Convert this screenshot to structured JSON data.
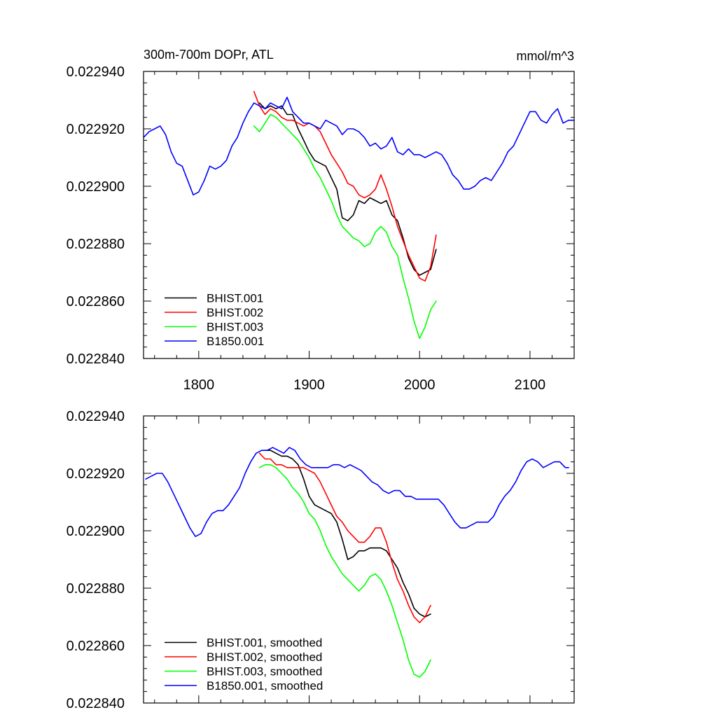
{
  "chart_data": [
    {
      "type": "line",
      "panel": "raw",
      "title": "300m-700m DOPr, ATL",
      "units": "mmol/m^3",
      "xlabel": "",
      "ylabel": "",
      "xlim": [
        1750,
        2140
      ],
      "ylim": [
        0.02284,
        0.02294
      ],
      "x_ticks": [
        1800,
        1900,
        2000,
        2100
      ],
      "x_tick_labels": [
        "1800",
        "1900",
        "2000",
        "2100"
      ],
      "y_ticks": [
        0.02284,
        0.02286,
        0.02288,
        0.0229,
        0.02292,
        0.02294
      ],
      "y_tick_labels": [
        "0.022840",
        "0.022860",
        "0.022880",
        "0.022900",
        "0.022920",
        "0.022940"
      ],
      "legend_position": "bottom-left",
      "series": [
        {
          "name": "BHIST.001",
          "color": "#000000",
          "x": [
            1855,
            1860,
            1865,
            1870,
            1875,
            1880,
            1885,
            1890,
            1895,
            1900,
            1905,
            1910,
            1915,
            1920,
            1925,
            1930,
            1935,
            1940,
            1945,
            1950,
            1955,
            1960,
            1965,
            1970,
            1975,
            1980,
            1985,
            1990,
            1995,
            2000,
            2005,
            2010,
            2015
          ],
          "values": [
            0.022929,
            0.022927,
            0.022928,
            0.022927,
            0.022928,
            0.022925,
            0.022925,
            0.02292,
            0.022916,
            0.022912,
            0.022909,
            0.022908,
            0.022907,
            0.022903,
            0.022899,
            0.022889,
            0.022888,
            0.02289,
            0.022895,
            0.022894,
            0.022896,
            0.022895,
            0.022894,
            0.022895,
            0.02289,
            0.022888,
            0.022882,
            0.022875,
            0.022871,
            0.022869,
            0.02287,
            0.022871,
            0.022878
          ]
        },
        {
          "name": "BHIST.002",
          "color": "#ff0000",
          "x": [
            1850,
            1855,
            1860,
            1865,
            1870,
            1875,
            1880,
            1885,
            1890,
            1895,
            1900,
            1905,
            1910,
            1915,
            1920,
            1925,
            1930,
            1935,
            1940,
            1945,
            1950,
            1955,
            1960,
            1965,
            1970,
            1975,
            1980,
            1985,
            1990,
            1995,
            2000,
            2005,
            2010,
            2015
          ],
          "values": [
            0.022933,
            0.022928,
            0.022925,
            0.022927,
            0.022926,
            0.022924,
            0.022923,
            0.022923,
            0.022922,
            0.022921,
            0.022922,
            0.022921,
            0.022919,
            0.022915,
            0.022911,
            0.022908,
            0.022905,
            0.022901,
            0.0229,
            0.022897,
            0.022896,
            0.022897,
            0.022899,
            0.022904,
            0.022899,
            0.022893,
            0.022886,
            0.022881,
            0.022876,
            0.022872,
            0.022868,
            0.022867,
            0.022872,
            0.022883
          ]
        },
        {
          "name": "BHIST.003",
          "color": "#00ff00",
          "x": [
            1850,
            1855,
            1860,
            1865,
            1870,
            1875,
            1880,
            1885,
            1890,
            1895,
            1900,
            1905,
            1910,
            1915,
            1920,
            1925,
            1930,
            1935,
            1940,
            1945,
            1950,
            1955,
            1960,
            1965,
            1970,
            1975,
            1980,
            1985,
            1990,
            1995,
            2000,
            2005,
            2010,
            2015
          ],
          "values": [
            0.022921,
            0.022919,
            0.022922,
            0.022925,
            0.022924,
            0.022922,
            0.02292,
            0.022918,
            0.022916,
            0.022913,
            0.02291,
            0.022906,
            0.022903,
            0.022899,
            0.022895,
            0.02289,
            0.022886,
            0.022884,
            0.022882,
            0.022881,
            0.022879,
            0.02288,
            0.022884,
            0.022886,
            0.022884,
            0.022879,
            0.022876,
            0.022868,
            0.022861,
            0.022853,
            0.022847,
            0.022851,
            0.022857,
            0.02286
          ]
        },
        {
          "name": "B1850.001",
          "color": "#0000ff",
          "x": [
            1750,
            1755,
            1760,
            1765,
            1770,
            1775,
            1780,
            1785,
            1790,
            1795,
            1800,
            1805,
            1810,
            1815,
            1820,
            1825,
            1830,
            1835,
            1840,
            1845,
            1850,
            1855,
            1860,
            1865,
            1870,
            1875,
            1880,
            1885,
            1890,
            1895,
            1900,
            1905,
            1910,
            1915,
            1920,
            1925,
            1930,
            1935,
            1940,
            1945,
            1950,
            1955,
            1960,
            1965,
            1970,
            1975,
            1980,
            1985,
            1990,
            1995,
            2000,
            2005,
            2010,
            2015,
            2020,
            2025,
            2030,
            2035,
            2040,
            2045,
            2050,
            2055,
            2060,
            2065,
            2070,
            2075,
            2080,
            2085,
            2090,
            2095,
            2100,
            2105,
            2110,
            2115,
            2120,
            2125,
            2130,
            2135,
            2140
          ],
          "values": [
            0.022917,
            0.022919,
            0.02292,
            0.022921,
            0.022918,
            0.022912,
            0.022908,
            0.022907,
            0.022902,
            0.022897,
            0.022898,
            0.022902,
            0.022907,
            0.022906,
            0.022907,
            0.022909,
            0.022914,
            0.022917,
            0.022922,
            0.022926,
            0.022929,
            0.022928,
            0.022927,
            0.022929,
            0.022928,
            0.022927,
            0.022931,
            0.022926,
            0.022924,
            0.022922,
            0.022922,
            0.022921,
            0.02292,
            0.022923,
            0.022922,
            0.022921,
            0.022918,
            0.02292,
            0.02292,
            0.022919,
            0.022917,
            0.022914,
            0.022915,
            0.022913,
            0.022914,
            0.022917,
            0.022912,
            0.022911,
            0.022913,
            0.022911,
            0.022911,
            0.02291,
            0.022911,
            0.022912,
            0.022911,
            0.022908,
            0.022904,
            0.022902,
            0.022899,
            0.022899,
            0.0229,
            0.022902,
            0.022903,
            0.022902,
            0.022905,
            0.022908,
            0.022912,
            0.022914,
            0.022918,
            0.022922,
            0.022926,
            0.022926,
            0.022923,
            0.022922,
            0.022925,
            0.022927,
            0.022922,
            0.022923,
            0.022923
          ]
        }
      ]
    },
    {
      "type": "line",
      "panel": "smoothed",
      "title": "",
      "xlabel": "",
      "ylabel": "",
      "xlim": [
        1750,
        2140
      ],
      "ylim": [
        0.02284,
        0.02294
      ],
      "x_ticks": [
        1800,
        1900,
        2000,
        2100
      ],
      "x_tick_labels": [],
      "y_ticks": [
        0.02284,
        0.02286,
        0.02288,
        0.0229,
        0.02292,
        0.02294
      ],
      "y_tick_labels": [
        "0.022840",
        "0.022860",
        "0.022880",
        "0.022900",
        "0.022920",
        "0.022940"
      ],
      "legend_position": "bottom-left",
      "series": [
        {
          "name": "BHIST.001, smoothed",
          "color": "#000000",
          "x": [
            1860,
            1865,
            1870,
            1875,
            1880,
            1885,
            1890,
            1895,
            1900,
            1905,
            1910,
            1915,
            1920,
            1925,
            1930,
            1935,
            1940,
            1945,
            1950,
            1955,
            1960,
            1965,
            1970,
            1975,
            1980,
            1985,
            1990,
            1995,
            2000,
            2005,
            2010
          ],
          "values": [
            0.022928,
            0.022928,
            0.022927,
            0.022926,
            0.022926,
            0.022925,
            0.022923,
            0.022918,
            0.022912,
            0.022909,
            0.022908,
            0.022907,
            0.022906,
            0.022903,
            0.022897,
            0.02289,
            0.022891,
            0.022893,
            0.022893,
            0.022894,
            0.022894,
            0.022894,
            0.022893,
            0.02289,
            0.022887,
            0.022882,
            0.022878,
            0.022873,
            0.022871,
            0.02287,
            0.022871
          ]
        },
        {
          "name": "BHIST.002, smoothed",
          "color": "#ff0000",
          "x": [
            1855,
            1860,
            1865,
            1870,
            1875,
            1880,
            1885,
            1890,
            1895,
            1900,
            1905,
            1910,
            1915,
            1920,
            1925,
            1930,
            1935,
            1940,
            1945,
            1950,
            1955,
            1960,
            1965,
            1970,
            1975,
            1980,
            1985,
            1990,
            1995,
            2000,
            2005,
            2010
          ],
          "values": [
            0.022927,
            0.022925,
            0.022925,
            0.022923,
            0.022923,
            0.022922,
            0.022922,
            0.022922,
            0.022922,
            0.022921,
            0.02292,
            0.022917,
            0.022913,
            0.022909,
            0.022905,
            0.022903,
            0.0229,
            0.022898,
            0.022896,
            0.022896,
            0.022898,
            0.022901,
            0.022901,
            0.022896,
            0.022889,
            0.022883,
            0.022879,
            0.022874,
            0.02287,
            0.022868,
            0.02287,
            0.022874
          ]
        },
        {
          "name": "BHIST.003, smoothed",
          "color": "#00ff00",
          "x": [
            1855,
            1860,
            1865,
            1870,
            1875,
            1880,
            1885,
            1890,
            1895,
            1900,
            1905,
            1910,
            1915,
            1920,
            1925,
            1930,
            1935,
            1940,
            1945,
            1950,
            1955,
            1960,
            1965,
            1970,
            1975,
            1980,
            1985,
            1990,
            1995,
            2000,
            2005,
            2010
          ],
          "values": [
            0.022922,
            0.022923,
            0.022923,
            0.022922,
            0.02292,
            0.022918,
            0.022915,
            0.022913,
            0.02291,
            0.022906,
            0.022904,
            0.0229,
            0.022895,
            0.022891,
            0.022888,
            0.022885,
            0.022883,
            0.022881,
            0.022879,
            0.022881,
            0.022884,
            0.022885,
            0.022883,
            0.022879,
            0.022874,
            0.022868,
            0.022862,
            0.022855,
            0.02285,
            0.022849,
            0.022851,
            0.022855
          ]
        },
        {
          "name": "B1850.001, smoothed",
          "color": "#0000ff",
          "x": [
            1752,
            1757,
            1762,
            1767,
            1772,
            1777,
            1782,
            1787,
            1792,
            1797,
            1802,
            1807,
            1812,
            1817,
            1822,
            1827,
            1832,
            1837,
            1842,
            1847,
            1852,
            1857,
            1862,
            1867,
            1872,
            1877,
            1882,
            1887,
            1892,
            1897,
            1902,
            1907,
            1912,
            1917,
            1922,
            1927,
            1932,
            1937,
            1942,
            1947,
            1952,
            1957,
            1962,
            1967,
            1972,
            1977,
            1982,
            1987,
            1992,
            1997,
            2002,
            2007,
            2012,
            2017,
            2022,
            2027,
            2032,
            2037,
            2042,
            2047,
            2052,
            2057,
            2062,
            2067,
            2072,
            2077,
            2082,
            2087,
            2092,
            2097,
            2102,
            2107,
            2112,
            2117,
            2122,
            2127,
            2132,
            2135
          ],
          "values": [
            0.022918,
            0.022919,
            0.02292,
            0.02292,
            0.022917,
            0.022913,
            0.022909,
            0.022905,
            0.022901,
            0.022898,
            0.022899,
            0.022903,
            0.022906,
            0.022907,
            0.022907,
            0.022909,
            0.022912,
            0.022915,
            0.02292,
            0.022924,
            0.022927,
            0.022928,
            0.022928,
            0.022929,
            0.022928,
            0.022927,
            0.022929,
            0.022928,
            0.022925,
            0.022923,
            0.022922,
            0.022922,
            0.022922,
            0.022922,
            0.022923,
            0.022923,
            0.022922,
            0.022923,
            0.022922,
            0.022921,
            0.022919,
            0.022917,
            0.022916,
            0.022914,
            0.022913,
            0.022914,
            0.022914,
            0.022912,
            0.022912,
            0.022911,
            0.022911,
            0.022911,
            0.022911,
            0.022911,
            0.022909,
            0.022906,
            0.022903,
            0.022901,
            0.022901,
            0.022902,
            0.022903,
            0.022903,
            0.022903,
            0.022905,
            0.022909,
            0.022912,
            0.022914,
            0.022917,
            0.022921,
            0.022924,
            0.022925,
            0.022924,
            0.022922,
            0.022923,
            0.022924,
            0.022924,
            0.022922,
            0.022922
          ]
        }
      ]
    }
  ]
}
